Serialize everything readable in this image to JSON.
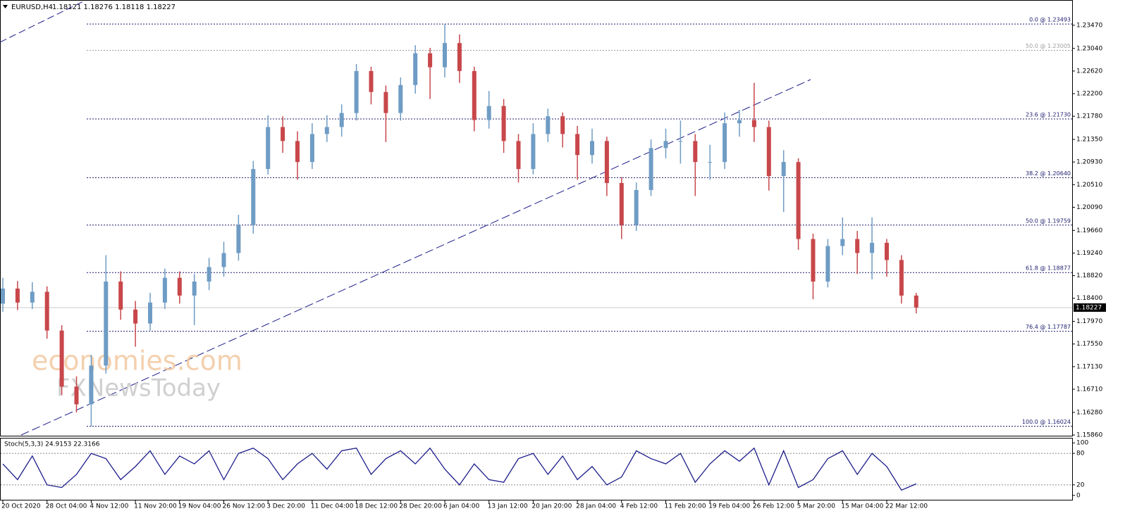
{
  "chart_data": {
    "type": "candlestick",
    "symbol": "EURUSD,H4",
    "quote": "1.18121 1.18276 1.18118 1.18227",
    "watermark": [
      "economies.com",
      "FXNewsToday"
    ],
    "up_color": "#6f9cc4",
    "down_color": "#c8474a",
    "categories": [
      "20 Oct 2020",
      null,
      null,
      "28 Oct 04:00",
      null,
      null,
      "4 Nov 12:00",
      null,
      null,
      "11 Nov 20:00",
      null,
      null,
      "19 Nov 04:00",
      null,
      null,
      "26 Nov 12:00",
      null,
      null,
      "3 Dec 20:00",
      null,
      null,
      "11 Dec 04:00",
      null,
      null,
      "18 Dec 12:00",
      null,
      null,
      "28 Dec 20:00",
      null,
      null,
      "6 Jan 04:00",
      null,
      null,
      "13 Jan 12:00",
      null,
      null,
      "20 Jan 20:00",
      null,
      null,
      "28 Jan 04:00",
      null,
      null,
      "4 Feb 12:00",
      null,
      null,
      "11 Feb 20:00",
      null,
      null,
      "19 Feb 04:00",
      null,
      null,
      "26 Feb 12:00",
      null,
      null,
      "5 Mar 20:00",
      null,
      null,
      "15 Mar 04:00",
      null,
      null,
      "22 Mar 12:00",
      null,
      null
    ],
    "opens": [
      1.183,
      1.1858,
      1.1832,
      1.1852,
      1.178,
      1.1676,
      1.1643,
      1.1715,
      1.1871,
      1.1819,
      1.1793,
      1.1832,
      1.1878,
      1.1845,
      1.1871,
      1.1898,
      1.1924,
      1.1976,
      1.208,
      1.2158,
      1.2132,
      1.2093,
      1.2145,
      1.2158,
      1.2184,
      1.2262,
      1.2223,
      1.2184,
      1.2236,
      1.2295,
      1.2269,
      1.2314,
      1.2262,
      1.2171,
      1.2197,
      1.2132,
      1.208,
      1.2145,
      1.2178,
      1.2145,
      1.2106,
      1.2132,
      1.2054,
      1.1976,
      1.2041,
      1.2119,
      1.2132,
      1.2132,
      1.2093,
      1.2093,
      1.2165,
      1.2171,
      1.2158,
      1.2067,
      1.2093,
      1.195,
      1.1871,
      1.1937,
      1.195,
      1.1924,
      1.1943,
      1.1911,
      1.1845
    ],
    "highs": [
      1.1878,
      1.1872,
      1.187,
      1.1862,
      1.179,
      1.1695,
      1.1735,
      1.192,
      1.189,
      1.1835,
      1.185,
      1.1895,
      1.189,
      1.1885,
      1.1915,
      1.1945,
      1.1995,
      1.2095,
      1.218,
      1.2178,
      1.215,
      1.2165,
      1.218,
      1.22,
      1.2275,
      1.227,
      1.2235,
      1.225,
      1.231,
      1.2305,
      1.2349,
      1.233,
      1.227,
      1.2225,
      1.221,
      1.2145,
      1.2165,
      1.2192,
      1.2185,
      1.216,
      1.2155,
      1.214,
      1.2065,
      1.2055,
      1.2135,
      1.2155,
      1.217,
      1.2145,
      1.2125,
      1.2185,
      1.219,
      1.224,
      1.217,
      1.2115,
      1.21,
      1.196,
      1.195,
      1.199,
      1.1965,
      1.199,
      1.195,
      1.192,
      1.185
    ],
    "lows": [
      1.1815,
      1.1818,
      1.182,
      1.1765,
      1.166,
      1.1628,
      1.1602,
      1.17,
      1.18,
      1.175,
      1.178,
      1.182,
      1.183,
      1.179,
      1.1855,
      1.188,
      1.191,
      1.196,
      1.207,
      1.211,
      1.206,
      1.208,
      1.213,
      1.214,
      1.217,
      1.22,
      1.213,
      1.217,
      1.222,
      1.221,
      1.225,
      1.224,
      1.215,
      1.2155,
      1.211,
      1.2055,
      1.207,
      1.213,
      1.212,
      1.206,
      1.209,
      1.203,
      1.195,
      1.1965,
      1.203,
      1.21,
      1.209,
      1.203,
      1.206,
      1.208,
      1.214,
      1.213,
      1.204,
      1.2,
      1.193,
      1.1838,
      1.186,
      1.192,
      1.1885,
      1.1875,
      1.188,
      1.183,
      1.1812
    ],
    "closes": [
      1.1858,
      1.1832,
      1.1852,
      1.178,
      1.1676,
      1.1643,
      1.1715,
      1.1871,
      1.1819,
      1.1793,
      1.1832,
      1.1878,
      1.1845,
      1.1871,
      1.1898,
      1.1924,
      1.1976,
      1.208,
      1.2158,
      1.2132,
      1.2093,
      1.2145,
      1.2158,
      1.2184,
      1.2262,
      1.2223,
      1.2184,
      1.2236,
      1.2295,
      1.2269,
      1.2314,
      1.2262,
      1.2171,
      1.2197,
      1.2132,
      1.208,
      1.2145,
      1.2178,
      1.2145,
      1.2106,
      1.2132,
      1.2054,
      1.1976,
      1.2041,
      1.2119,
      1.2132,
      1.2132,
      1.2093,
      1.2093,
      1.2165,
      1.2171,
      1.2158,
      1.2067,
      1.2093,
      1.195,
      1.1871,
      1.1937,
      1.195,
      1.1924,
      1.1943,
      1.1911,
      1.1845,
      1.18227
    ],
    "current_price": 1.18227,
    "ylim": [
      1.15847,
      1.23926
    ],
    "yticks": [
      {
        "value": 1.2347,
        "label": "1.23470"
      },
      {
        "value": 1.2304,
        "label": "1.23040"
      },
      {
        "value": 1.2262,
        "label": "1.22620"
      },
      {
        "value": 1.222,
        "label": "1.22200"
      },
      {
        "value": 1.2178,
        "label": "1.21780"
      },
      {
        "value": 1.2135,
        "label": "1.21350"
      },
      {
        "value": 1.2093,
        "label": "1.20930"
      },
      {
        "value": 1.2051,
        "label": "1.20510"
      },
      {
        "value": 1.2009,
        "label": "1.20090"
      },
      {
        "value": 1.1966,
        "label": "1.19660"
      },
      {
        "value": 1.1924,
        "label": "1.19240"
      },
      {
        "value": 1.1882,
        "label": "1.18820"
      },
      {
        "value": 1.184,
        "label": "1.18400"
      },
      {
        "value": 1.1797,
        "label": "1.17970"
      },
      {
        "value": 1.1755,
        "label": "1.17550"
      },
      {
        "value": 1.1713,
        "label": "1.17130"
      },
      {
        "value": 1.1671,
        "label": "1.16710"
      },
      {
        "value": 1.1628,
        "label": "1.16280"
      },
      {
        "value": 1.1586,
        "label": "1.15860"
      }
    ],
    "levels": [
      {
        "value": 1.23493,
        "label": "0.0 @ 1.23493",
        "color": "#1c1c6e"
      },
      {
        "value": 1.23005,
        "label": "50.0 @ 1.23005",
        "color": "#a0a0a0"
      },
      {
        "value": 1.2173,
        "label": "23.6 @ 1.21730",
        "color": "#1c1c6e"
      },
      {
        "value": 1.2064,
        "label": "38.2 @ 1.20640",
        "color": "#1c1c6e"
      },
      {
        "value": 1.19759,
        "label": "50.0 @ 1.19759",
        "color": "#1c1c6e"
      },
      {
        "value": 1.18877,
        "label": "61.8 @ 1.18877",
        "color": "#1c1c6e"
      },
      {
        "value": 1.17787,
        "label": "76.4 @ 1.17787",
        "color": "#1c1c6e"
      },
      {
        "value": 1.16024,
        "label": "100.0 @ 1.16024",
        "color": "#1c1c6e"
      }
    ],
    "stochastic": {
      "title": "Stoch(5,3,3) 24.9153 22.3166",
      "color": "#1c1c8a",
      "ylim": [
        -9.7,
        108.3
      ],
      "yticks": [
        0,
        20,
        80,
        100
      ],
      "values": [
        60,
        30,
        75,
        20,
        15,
        40,
        80,
        70,
        30,
        55,
        85,
        40,
        75,
        60,
        85,
        30,
        80,
        90,
        70,
        30,
        60,
        80,
        50,
        85,
        90,
        40,
        70,
        85,
        60,
        90,
        50,
        20,
        60,
        30,
        25,
        70,
        80,
        40,
        75,
        30,
        55,
        20,
        35,
        85,
        70,
        60,
        80,
        25,
        60,
        85,
        65,
        90,
        20,
        85,
        15,
        30,
        70,
        85,
        40,
        80,
        55,
        10,
        22
      ]
    }
  }
}
